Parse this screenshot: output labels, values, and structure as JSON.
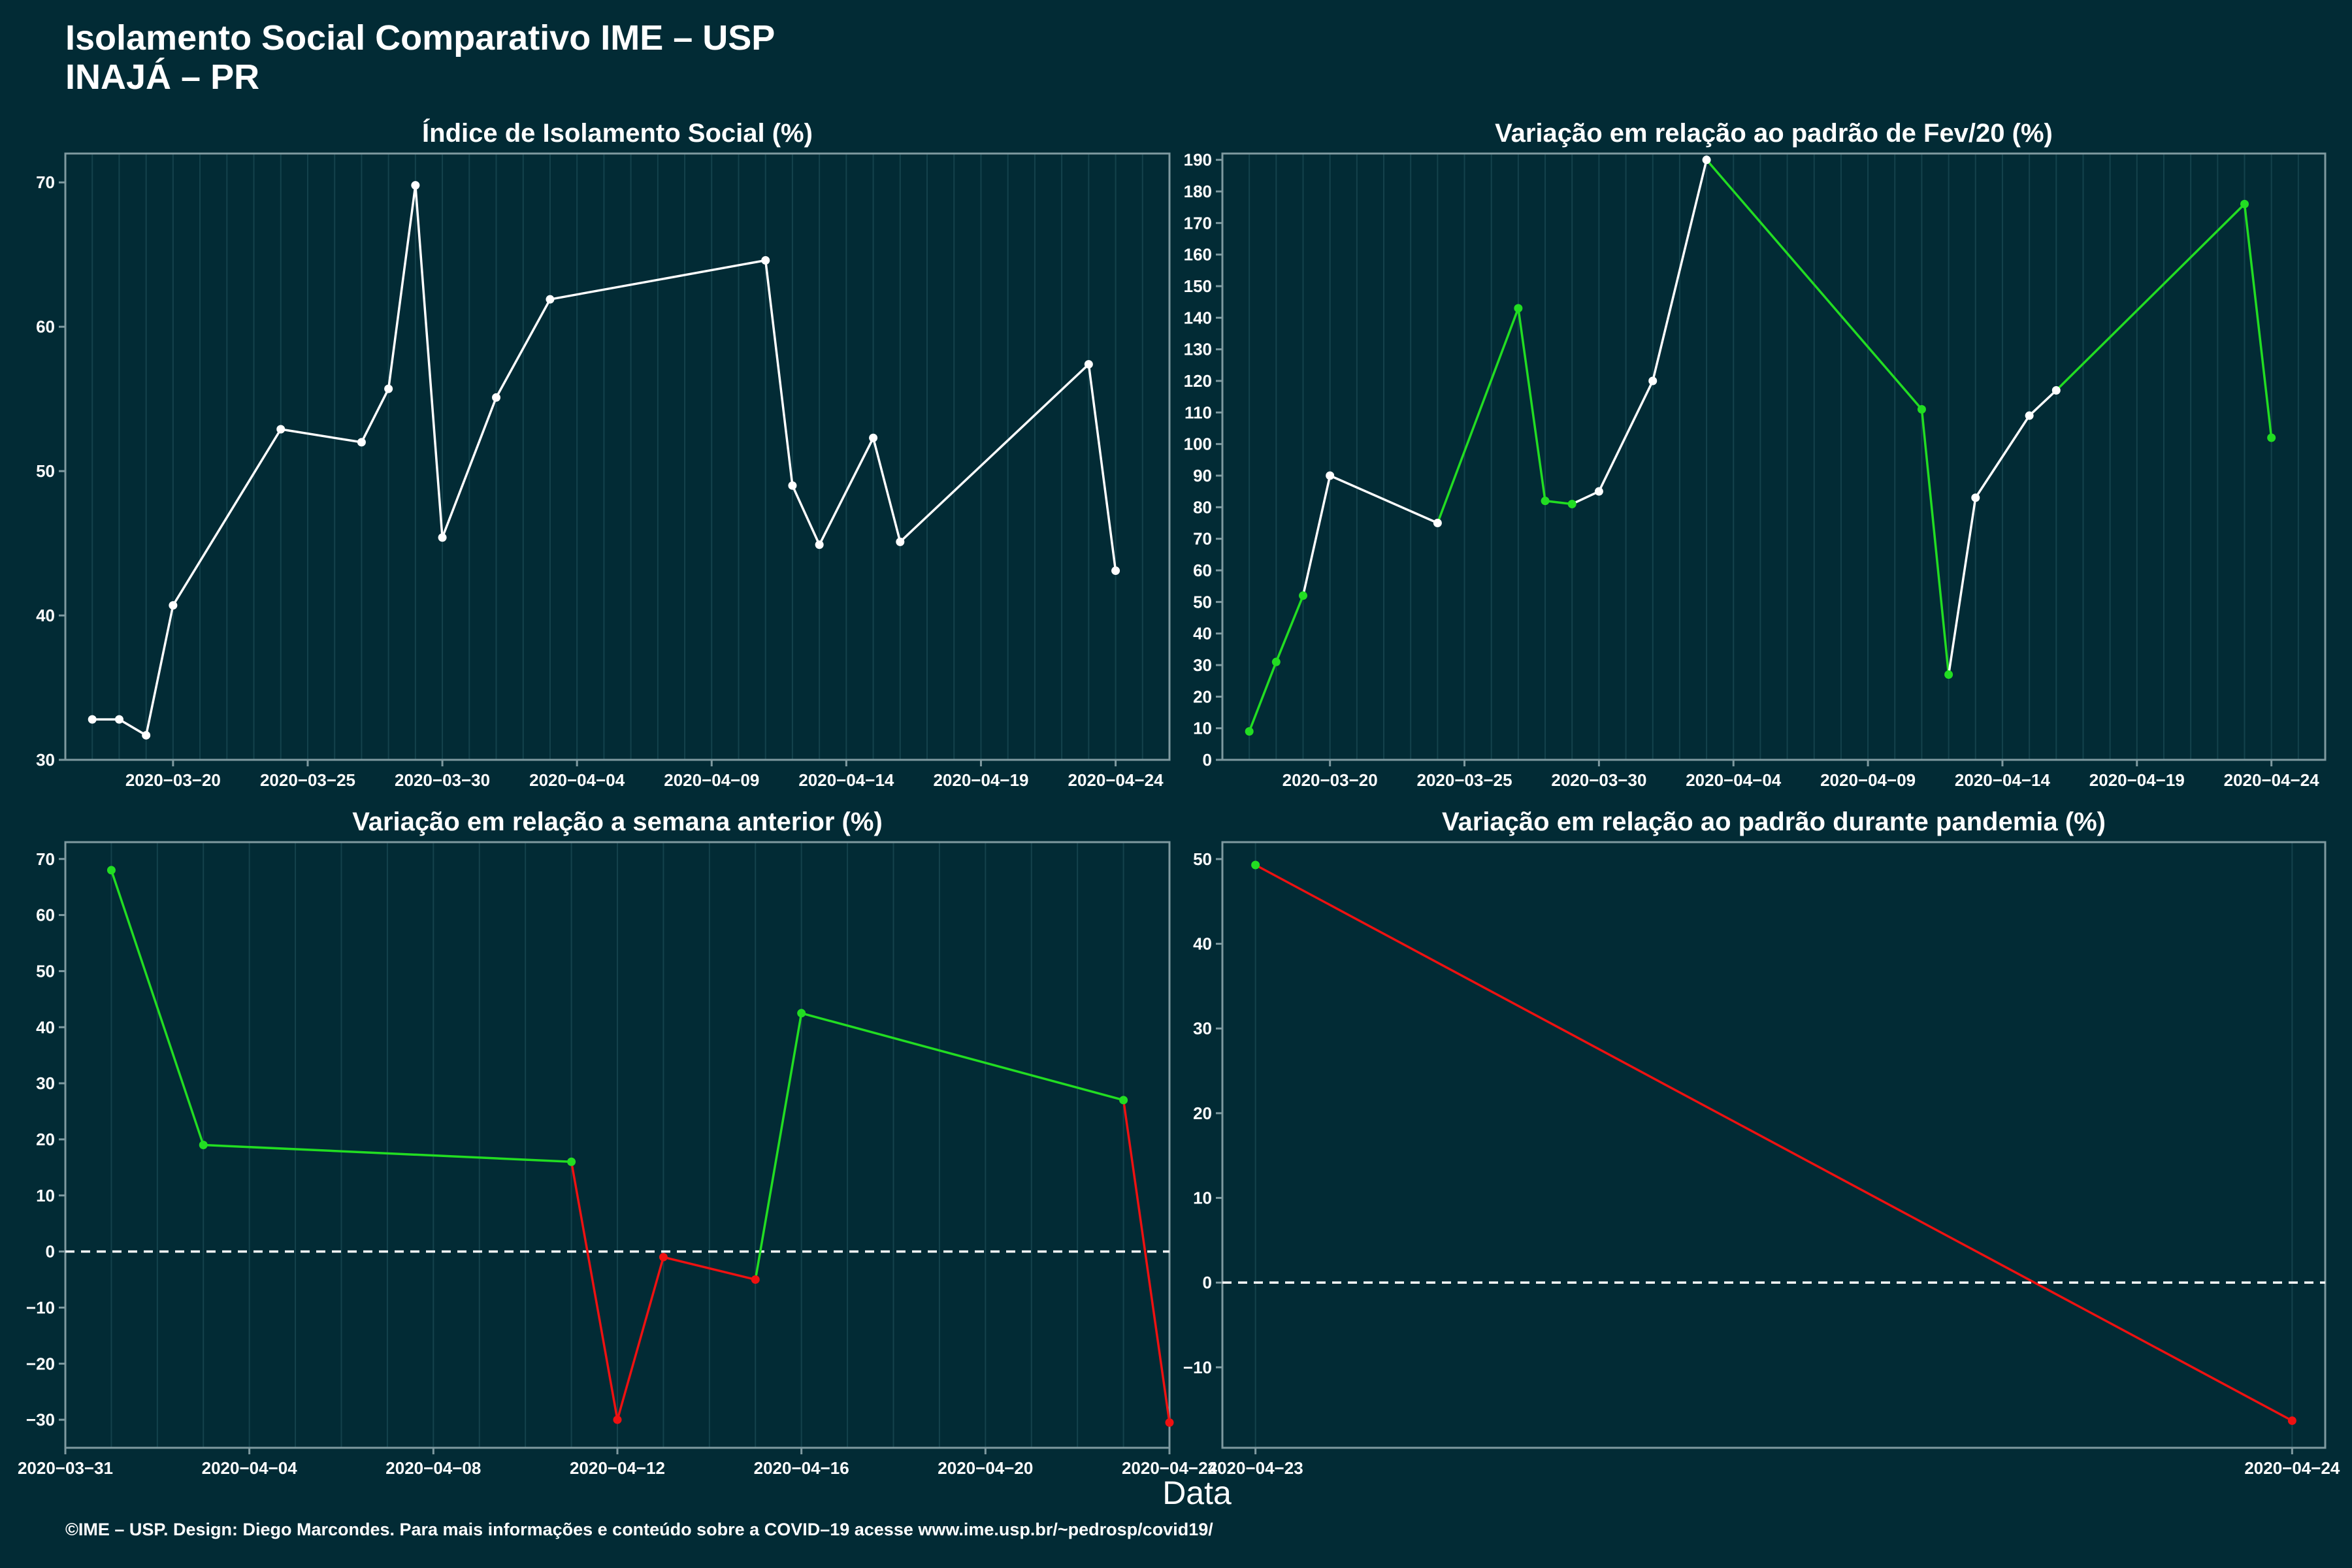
{
  "page": {
    "title_line1": "Isolamento Social Comparativo IME – USP",
    "title_line2": "INAJÁ – PR",
    "caption": "©IME – USP. Design: Diego Marcondes. Para mais informações e conteúdo sobre a COVID–19 acesse www.ime.usp.br/~pedrosp/covid19/",
    "xlabel": "Data"
  },
  "colors": {
    "background": "#022b35",
    "panel_border": "#7f9aa0",
    "grid": "#14424c",
    "white": "#ffffff",
    "green": "#22dd22",
    "red": "#ee1111"
  },
  "chart_data": [
    {
      "type": "line",
      "title": "Índice de Isolamento Social (%)",
      "xlim": [
        "2020-03-16",
        "2020-04-26"
      ],
      "ylim": [
        30,
        72
      ],
      "yticks": [
        30,
        40,
        50,
        60,
        70
      ],
      "xticks": [
        "2020-03-20",
        "2020-03-25",
        "2020-03-30",
        "2020-04-04",
        "2020-04-09",
        "2020-04-14",
        "2020-04-19",
        "2020-04-24"
      ],
      "series": [
        {
          "x": [
            "2020-03-17",
            "2020-03-18",
            "2020-03-19",
            "2020-03-20",
            "2020-03-24",
            "2020-03-27",
            "2020-03-28",
            "2020-03-29",
            "2020-03-30",
            "2020-04-01",
            "2020-04-03",
            "2020-04-11",
            "2020-04-12",
            "2020-04-13",
            "2020-04-15",
            "2020-04-16",
            "2020-04-23",
            "2020-04-24"
          ],
          "y": [
            32.8,
            32.8,
            31.7,
            40.7,
            52.9,
            52.0,
            55.7,
            69.8,
            45.4,
            55.1,
            61.9,
            64.6,
            49.0,
            44.9,
            52.3,
            45.1,
            57.4,
            43.1
          ],
          "colors": [
            "white",
            "white",
            "white",
            "white",
            "white",
            "white",
            "white",
            "white",
            "white",
            "white",
            "white",
            "white",
            "white",
            "white",
            "white",
            "white",
            "white",
            "white"
          ]
        }
      ]
    },
    {
      "type": "line",
      "title": "Variação em relação ao padrão de Fev/20 (%)",
      "xlim": [
        "2020-03-16",
        "2020-04-26"
      ],
      "ylim": [
        0,
        192
      ],
      "yticks": [
        0,
        10,
        20,
        30,
        40,
        50,
        60,
        70,
        80,
        90,
        100,
        110,
        120,
        130,
        140,
        150,
        160,
        170,
        180,
        190
      ],
      "xticks": [
        "2020-03-20",
        "2020-03-25",
        "2020-03-30",
        "2020-04-04",
        "2020-04-09",
        "2020-04-14",
        "2020-04-19",
        "2020-04-24"
      ],
      "series": [
        {
          "x": [
            "2020-03-17",
            "2020-03-18",
            "2020-03-19",
            "2020-03-20",
            "2020-03-24",
            "2020-03-27",
            "2020-03-28",
            "2020-03-29",
            "2020-03-30",
            "2020-04-01",
            "2020-04-03",
            "2020-04-11",
            "2020-04-12",
            "2020-04-13",
            "2020-04-15",
            "2020-04-16",
            "2020-04-23",
            "2020-04-24"
          ],
          "y": [
            9,
            31,
            52,
            90,
            75,
            143,
            82,
            81,
            85,
            120,
            190,
            111,
            27,
            83,
            109,
            117,
            176,
            102
          ],
          "colors": [
            "green",
            "green",
            "green",
            "white",
            "white",
            "green",
            "green",
            "green",
            "white",
            "white",
            "white",
            "green",
            "green",
            "white",
            "white",
            "white",
            "green",
            "green"
          ]
        }
      ]
    },
    {
      "type": "line",
      "title": "Variação em relação a semana anterior (%)",
      "xlim": [
        "2020-03-31",
        "2020-04-24"
      ],
      "ylim": [
        -35,
        73
      ],
      "yticks": [
        -30,
        -20,
        -10,
        0,
        10,
        20,
        30,
        40,
        50,
        60,
        70
      ],
      "hline": 0,
      "xticks": [
        "2020-03-31",
        "2020-04-04",
        "2020-04-08",
        "2020-04-12",
        "2020-04-16",
        "2020-04-20",
        "2020-04-24"
      ],
      "series": [
        {
          "x": [
            "2020-04-01",
            "2020-04-03",
            "2020-04-11",
            "2020-04-12",
            "2020-04-13",
            "2020-04-15",
            "2020-04-16",
            "2020-04-23",
            "2020-04-24"
          ],
          "y": [
            68,
            19,
            16,
            -30,
            -1,
            -5,
            42.5,
            27,
            -30.5
          ],
          "colors": [
            "green",
            "green",
            "green",
            "red",
            "red",
            "red",
            "green",
            "green",
            "red"
          ]
        }
      ]
    },
    {
      "type": "line",
      "title": "Variação em relação ao padrão durante pandemia (%)",
      "xlim": [
        "2020-04-23",
        "2020-04-24"
      ],
      "ylim": [
        -19.5,
        52
      ],
      "yticks": [
        -10,
        0,
        10,
        20,
        30,
        40,
        50
      ],
      "hline": 0,
      "xticks": [
        "2020-04-23",
        "2020-04-24"
      ],
      "series": [
        {
          "x": [
            "2020-04-23",
            "2020-04-24"
          ],
          "y": [
            49.3,
            -16.3
          ],
          "colors": [
            "green",
            "red"
          ]
        }
      ]
    }
  ]
}
